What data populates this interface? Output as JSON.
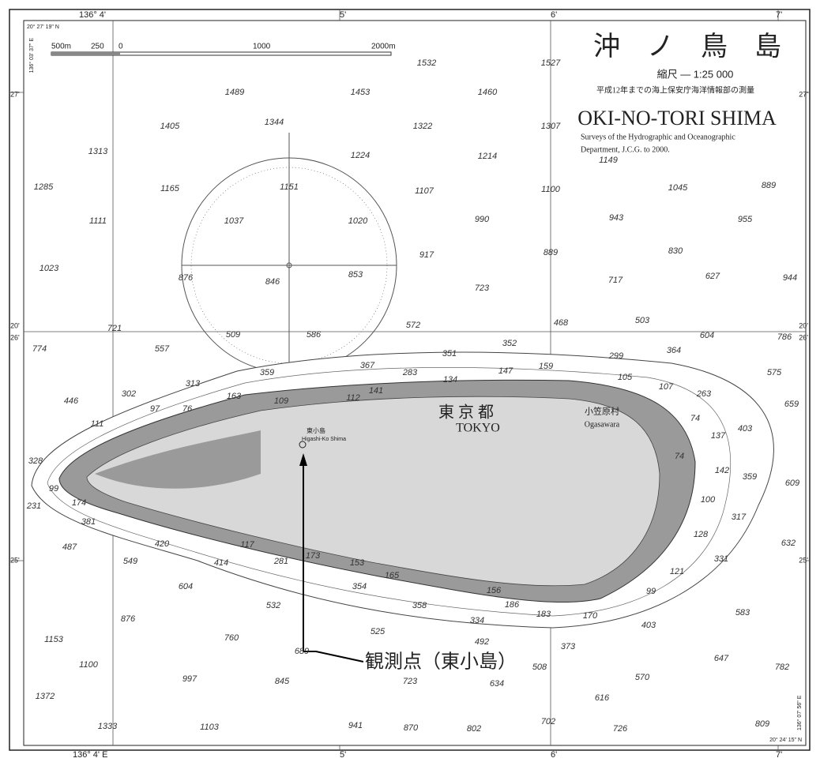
{
  "edges": {
    "top": [
      "136° 4'",
      "5'",
      "6'",
      "7'"
    ],
    "bottom": [
      "136° 4' E",
      "5'",
      "6'",
      "7'"
    ],
    "left": [
      "27'",
      "20'",
      "26'",
      "25'"
    ],
    "right": [
      "27'",
      "20'",
      "26'",
      "25'"
    ]
  },
  "corners": {
    "top_left_lat": "20° 27' 19\" N",
    "top_left_lon": "136° 03' 37\" E",
    "bottom_right_lat": "20° 24' 15\" N",
    "bottom_right_lon": "136° 07' 56\" E"
  },
  "scale_bar": [
    "500m",
    "250",
    "0",
    "1000",
    "2000m"
  ],
  "title": {
    "japanese": "沖　ノ　鳥　島",
    "scale": "縮尺 — 1:25 000",
    "survey_jp": "平成12年までの海上保安庁海洋情報部の測量",
    "english": "OKI-NO-TORI SHIMA",
    "survey_en_1": "Surveys of the Hydrographic and Oceanographic",
    "survey_en_2": "Department, J.C.G. to 2000."
  },
  "place_labels": {
    "tokyo_jp": "東 京 都",
    "tokyo_en": "TOKYO",
    "ogasawara_jp": "小笠原村",
    "ogasawara_en": "Ogasawara",
    "higashi_jp": "東小島",
    "higashi_en": "Higashi-Ko Shima"
  },
  "annotation": "観測点（東小島）",
  "soundings": [
    1532,
    1527,
    1489,
    1453,
    1460,
    1405,
    1344,
    1322,
    1307,
    1313,
    1224,
    1214,
    1149,
    1285,
    1165,
    1151,
    1107,
    1100,
    1045,
    889,
    1111,
    1037,
    1020,
    990,
    943,
    955,
    917,
    889,
    830,
    1023,
    876,
    846,
    853,
    723,
    717,
    627,
    944,
    721,
    572,
    468,
    503,
    509,
    586,
    604,
    786,
    774,
    557,
    351,
    352,
    299,
    364,
    367,
    359,
    283,
    134,
    147,
    159,
    105,
    575,
    313,
    107,
    263,
    302,
    446,
    163,
    141,
    659,
    97,
    76,
    109,
    112,
    111,
    74,
    403,
    137,
    328,
    74,
    142,
    359,
    609,
    99,
    100,
    231,
    174,
    317,
    381,
    128,
    420,
    117,
    632,
    487,
    414,
    281,
    173,
    153,
    331,
    549,
    165,
    121,
    604,
    354,
    156,
    99,
    532,
    358,
    186,
    183,
    583,
    876,
    334,
    170,
    403,
    525,
    760,
    492,
    1153,
    373,
    689,
    647,
    1100,
    508,
    997,
    845,
    723,
    634,
    570,
    782,
    1372,
    616,
    1333,
    1103,
    941,
    870,
    802,
    702,
    726,
    809
  ]
}
